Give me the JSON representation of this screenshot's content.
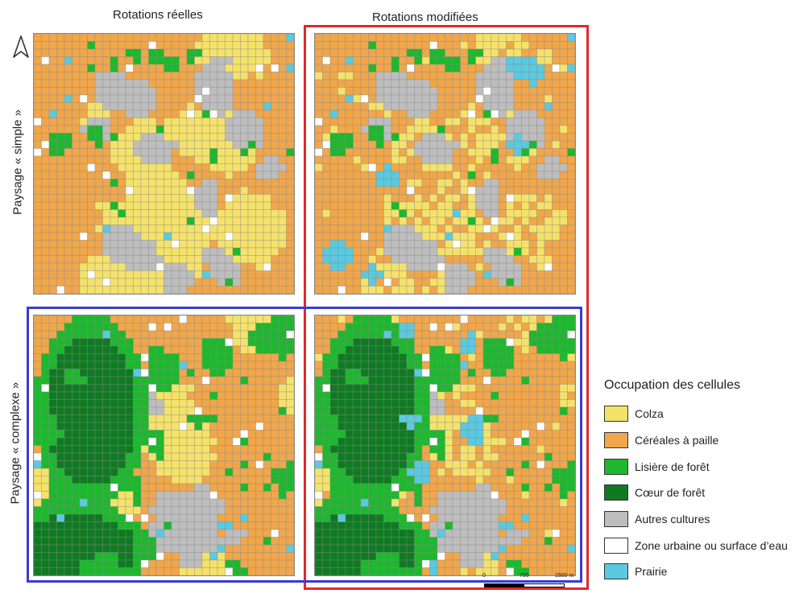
{
  "headers": {
    "col_left": "Rotations réelles",
    "col_right": "Rotations modifiées",
    "row_top": "Paysage « simple »",
    "row_bottom": "Paysage « complexe »"
  },
  "legend": {
    "title": "Occupation des cellules",
    "items": [
      {
        "label": "Colza",
        "color": "#f5e26a"
      },
      {
        "label": "Céréales à paille",
        "color": "#f0a64a"
      },
      {
        "label": "Lisière de forêt",
        "color": "#1db82e"
      },
      {
        "label": "Cœur de forêt",
        "color": "#0f7a22"
      },
      {
        "label": "Autres cultures",
        "color": "#bdbdbd"
      },
      {
        "label": "Zone urbaine ou surface d’eau",
        "color": "#ffffff"
      },
      {
        "label": "Prairie",
        "color": "#5bc9e0"
      }
    ]
  },
  "scale": {
    "labels": [
      "0",
      "750",
      "1500 m"
    ]
  },
  "frames": {
    "highlight_column_color": "#e3282d",
    "highlight_row_color": "#3a3ad6"
  },
  "north_icon": "north-arrow-icon"
}
